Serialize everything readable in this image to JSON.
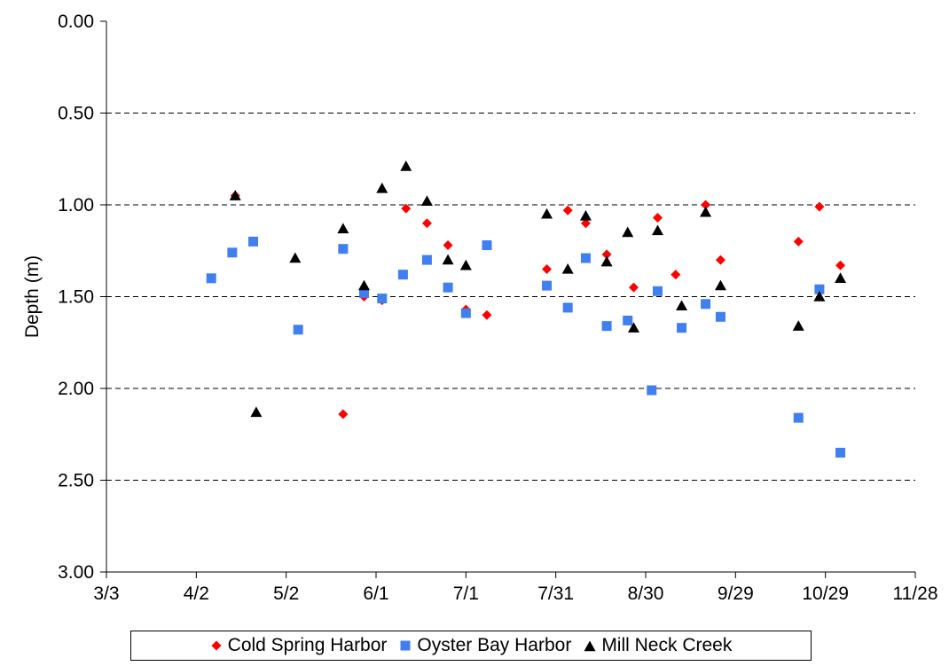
{
  "chart_data": {
    "type": "scatter",
    "title": "",
    "xlabel": "",
    "ylabel": "Depth (m)",
    "x_ticks": [
      "3/3",
      "4/2",
      "5/2",
      "6/1",
      "7/1",
      "7/31",
      "8/30",
      "9/29",
      "10/29",
      "11/28"
    ],
    "y_ticks": [
      "0.00",
      "0.50",
      "1.00",
      "1.50",
      "2.00",
      "2.50",
      "3.00"
    ],
    "ylim": [
      0,
      3
    ],
    "y_reversed": true,
    "xlim": [
      "3/3",
      "11/28"
    ],
    "grid": "horizontal dashed",
    "legend_position": "bottom",
    "series": [
      {
        "name": "Cold Spring Harbor",
        "color": "#ff0000",
        "marker": "diamond",
        "points": [
          {
            "x": "4/15",
            "y": 0.95
          },
          {
            "x": "5/21",
            "y": 2.14
          },
          {
            "x": "5/28",
            "y": 1.5
          },
          {
            "x": "6/3",
            "y": 1.52
          },
          {
            "x": "6/11",
            "y": 1.02
          },
          {
            "x": "6/18",
            "y": 1.1
          },
          {
            "x": "6/25",
            "y": 1.22
          },
          {
            "x": "7/1",
            "y": 1.57
          },
          {
            "x": "7/8",
            "y": 1.6
          },
          {
            "x": "7/28",
            "y": 1.35
          },
          {
            "x": "8/4",
            "y": 1.03
          },
          {
            "x": "8/10",
            "y": 1.1
          },
          {
            "x": "8/17",
            "y": 1.27
          },
          {
            "x": "8/26",
            "y": 1.45
          },
          {
            "x": "9/3",
            "y": 1.07
          },
          {
            "x": "9/9",
            "y": 1.38
          },
          {
            "x": "9/19",
            "y": 1.0
          },
          {
            "x": "9/24",
            "y": 1.3
          },
          {
            "x": "10/20",
            "y": 1.2
          },
          {
            "x": "10/27",
            "y": 1.01
          },
          {
            "x": "11/3",
            "y": 1.33
          }
        ]
      },
      {
        "name": "Oyster Bay Harbor",
        "color": "#3f7ff0",
        "marker": "square",
        "points": [
          {
            "x": "4/7",
            "y": 1.4
          },
          {
            "x": "4/14",
            "y": 1.26
          },
          {
            "x": "4/21",
            "y": 1.2
          },
          {
            "x": "5/6",
            "y": 1.68
          },
          {
            "x": "5/21",
            "y": 1.24
          },
          {
            "x": "5/28",
            "y": 1.48
          },
          {
            "x": "6/3",
            "y": 1.51
          },
          {
            "x": "6/10",
            "y": 1.38
          },
          {
            "x": "6/18",
            "y": 1.3
          },
          {
            "x": "6/25",
            "y": 1.45
          },
          {
            "x": "7/1",
            "y": 1.59
          },
          {
            "x": "7/8",
            "y": 1.22
          },
          {
            "x": "7/28",
            "y": 1.44
          },
          {
            "x": "8/4",
            "y": 1.56
          },
          {
            "x": "8/10",
            "y": 1.29
          },
          {
            "x": "8/17",
            "y": 1.66
          },
          {
            "x": "8/24",
            "y": 1.63
          },
          {
            "x": "9/1",
            "y": 2.01
          },
          {
            "x": "9/3",
            "y": 1.47
          },
          {
            "x": "9/11",
            "y": 1.67
          },
          {
            "x": "9/19",
            "y": 1.54
          },
          {
            "x": "9/24",
            "y": 1.61
          },
          {
            "x": "10/20",
            "y": 2.16
          },
          {
            "x": "10/27",
            "y": 1.46
          },
          {
            "x": "11/3",
            "y": 2.35
          }
        ]
      },
      {
        "name": "Mill Neck Creek",
        "color": "#000000",
        "marker": "triangle",
        "points": [
          {
            "x": "4/15",
            "y": 0.95
          },
          {
            "x": "4/22",
            "y": 2.13
          },
          {
            "x": "5/5",
            "y": 1.29
          },
          {
            "x": "5/21",
            "y": 1.13
          },
          {
            "x": "5/28",
            "y": 1.44
          },
          {
            "x": "6/3",
            "y": 0.91
          },
          {
            "x": "6/11",
            "y": 0.79
          },
          {
            "x": "6/18",
            "y": 0.98
          },
          {
            "x": "6/25",
            "y": 1.3
          },
          {
            "x": "7/1",
            "y": 1.33
          },
          {
            "x": "7/28",
            "y": 1.05
          },
          {
            "x": "8/4",
            "y": 1.35
          },
          {
            "x": "8/10",
            "y": 1.06
          },
          {
            "x": "8/17",
            "y": 1.31
          },
          {
            "x": "8/24",
            "y": 1.15
          },
          {
            "x": "8/26",
            "y": 1.67
          },
          {
            "x": "9/3",
            "y": 1.14
          },
          {
            "x": "9/11",
            "y": 1.55
          },
          {
            "x": "9/19",
            "y": 1.04
          },
          {
            "x": "9/24",
            "y": 1.44
          },
          {
            "x": "10/20",
            "y": 1.66
          },
          {
            "x": "10/27",
            "y": 1.5
          },
          {
            "x": "11/3",
            "y": 1.4
          }
        ]
      }
    ]
  }
}
